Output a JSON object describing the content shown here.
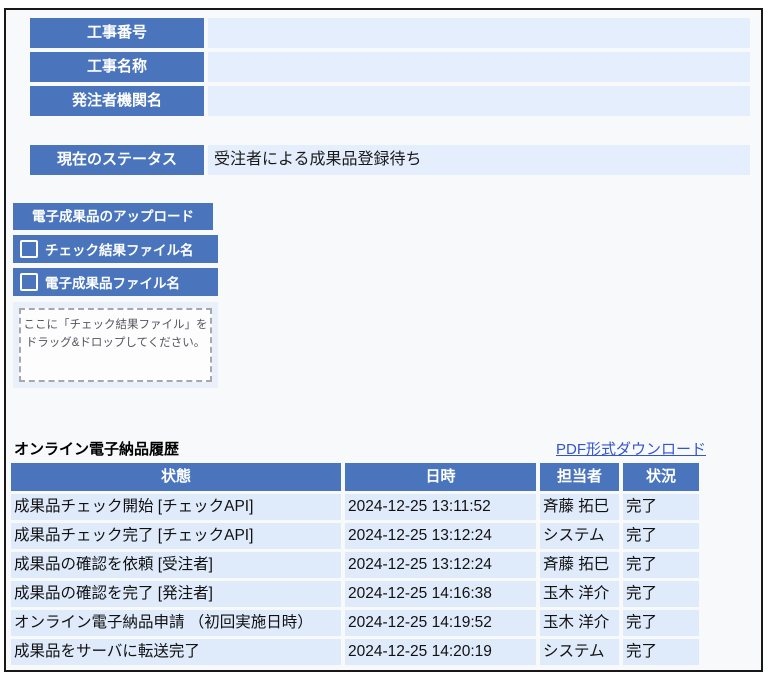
{
  "colors": {
    "header_blue": "#4a75bd",
    "value_cell_blue": "#e4eefc",
    "row_blue": "#dfeafb",
    "link_blue": "#3355cc"
  },
  "info_table": {
    "rows": [
      {
        "label": "工事番号",
        "value": ""
      },
      {
        "label": "工事名称",
        "value": ""
      },
      {
        "label": "発注者機関名",
        "value": ""
      }
    ]
  },
  "status": {
    "label": "現在のステータス",
    "value": "受注者による成果品登録待ち"
  },
  "upload": {
    "title": "電子成果品のアップロード",
    "checkboxes": [
      {
        "label": "チェック結果ファイル名",
        "checked": false
      },
      {
        "label": "電子成果品ファイル名",
        "checked": false
      }
    ],
    "dropzone": {
      "line1": "ここに「チェック結果ファイル」を",
      "line2": "ドラッグ&ドロップしてください。"
    }
  },
  "history": {
    "title": "オンライン電子納品履歴",
    "download_link": "PDF形式ダウンロード",
    "columns": {
      "state": "状態",
      "datetime": "日時",
      "person": "担当者",
      "result": "状況"
    },
    "rows": [
      {
        "state": "成果品チェック開始 [チェックAPI]",
        "datetime": "2024-12-25 13:11:52",
        "person": "斉藤 拓巳",
        "result": "完了"
      },
      {
        "state": "成果品チェック完了 [チェックAPI]",
        "datetime": "2024-12-25 13:12:24",
        "person": "システム",
        "result": "完了"
      },
      {
        "state": "成果品の確認を依頼 [受注者]",
        "datetime": "2024-12-25 13:12:24",
        "person": "斉藤 拓巳",
        "result": "完了"
      },
      {
        "state": "成果品の確認を完了 [発注者]",
        "datetime": "2024-12-25 14:16:38",
        "person": "玉木 洋介",
        "result": "完了"
      },
      {
        "state": "オンライン電子納品申請 （初回実施日時）",
        "datetime": "2024-12-25 14:19:52",
        "person": "玉木 洋介",
        "result": "完了"
      },
      {
        "state": "成果品をサーバに転送完了",
        "datetime": "2024-12-25 14:20:19",
        "person": "システム",
        "result": "完了"
      }
    ]
  }
}
